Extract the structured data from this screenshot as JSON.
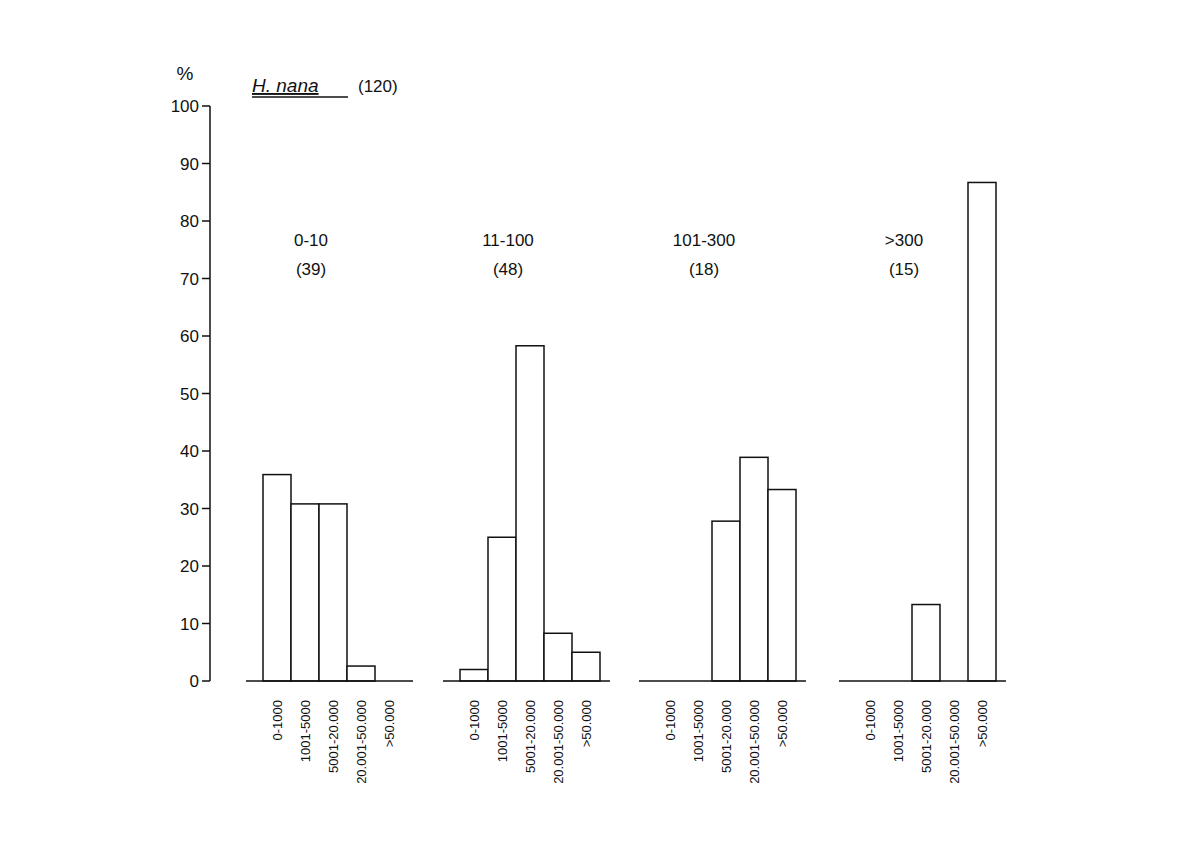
{
  "chart_data": {
    "type": "bar",
    "title": "H. nana",
    "subtitle": "(120)",
    "y_label": "%",
    "ylim": [
      0,
      100
    ],
    "yticks": [
      0,
      10,
      20,
      30,
      40,
      50,
      60,
      70,
      80,
      90,
      100
    ],
    "categories": [
      "0-1000",
      "1001-5000",
      "5001-20.000",
      "20.001-50.000",
      ">50.000"
    ],
    "color": "#ffffff",
    "panels": [
      {
        "title": "0-10",
        "subtitle": "(39)",
        "values": [
          35.9,
          30.8,
          30.8,
          2.6,
          0
        ]
      },
      {
        "title": "11-100",
        "subtitle": "(48)",
        "values": [
          2,
          25,
          58.3,
          8.3,
          5
        ]
      },
      {
        "title": "101-300",
        "subtitle": "(18)",
        "values": [
          0,
          0,
          27.8,
          38.9,
          33.3
        ]
      },
      {
        "title": ">300",
        "subtitle": "(15)",
        "values": [
          0,
          0,
          13.3,
          0,
          86.7
        ]
      }
    ]
  }
}
